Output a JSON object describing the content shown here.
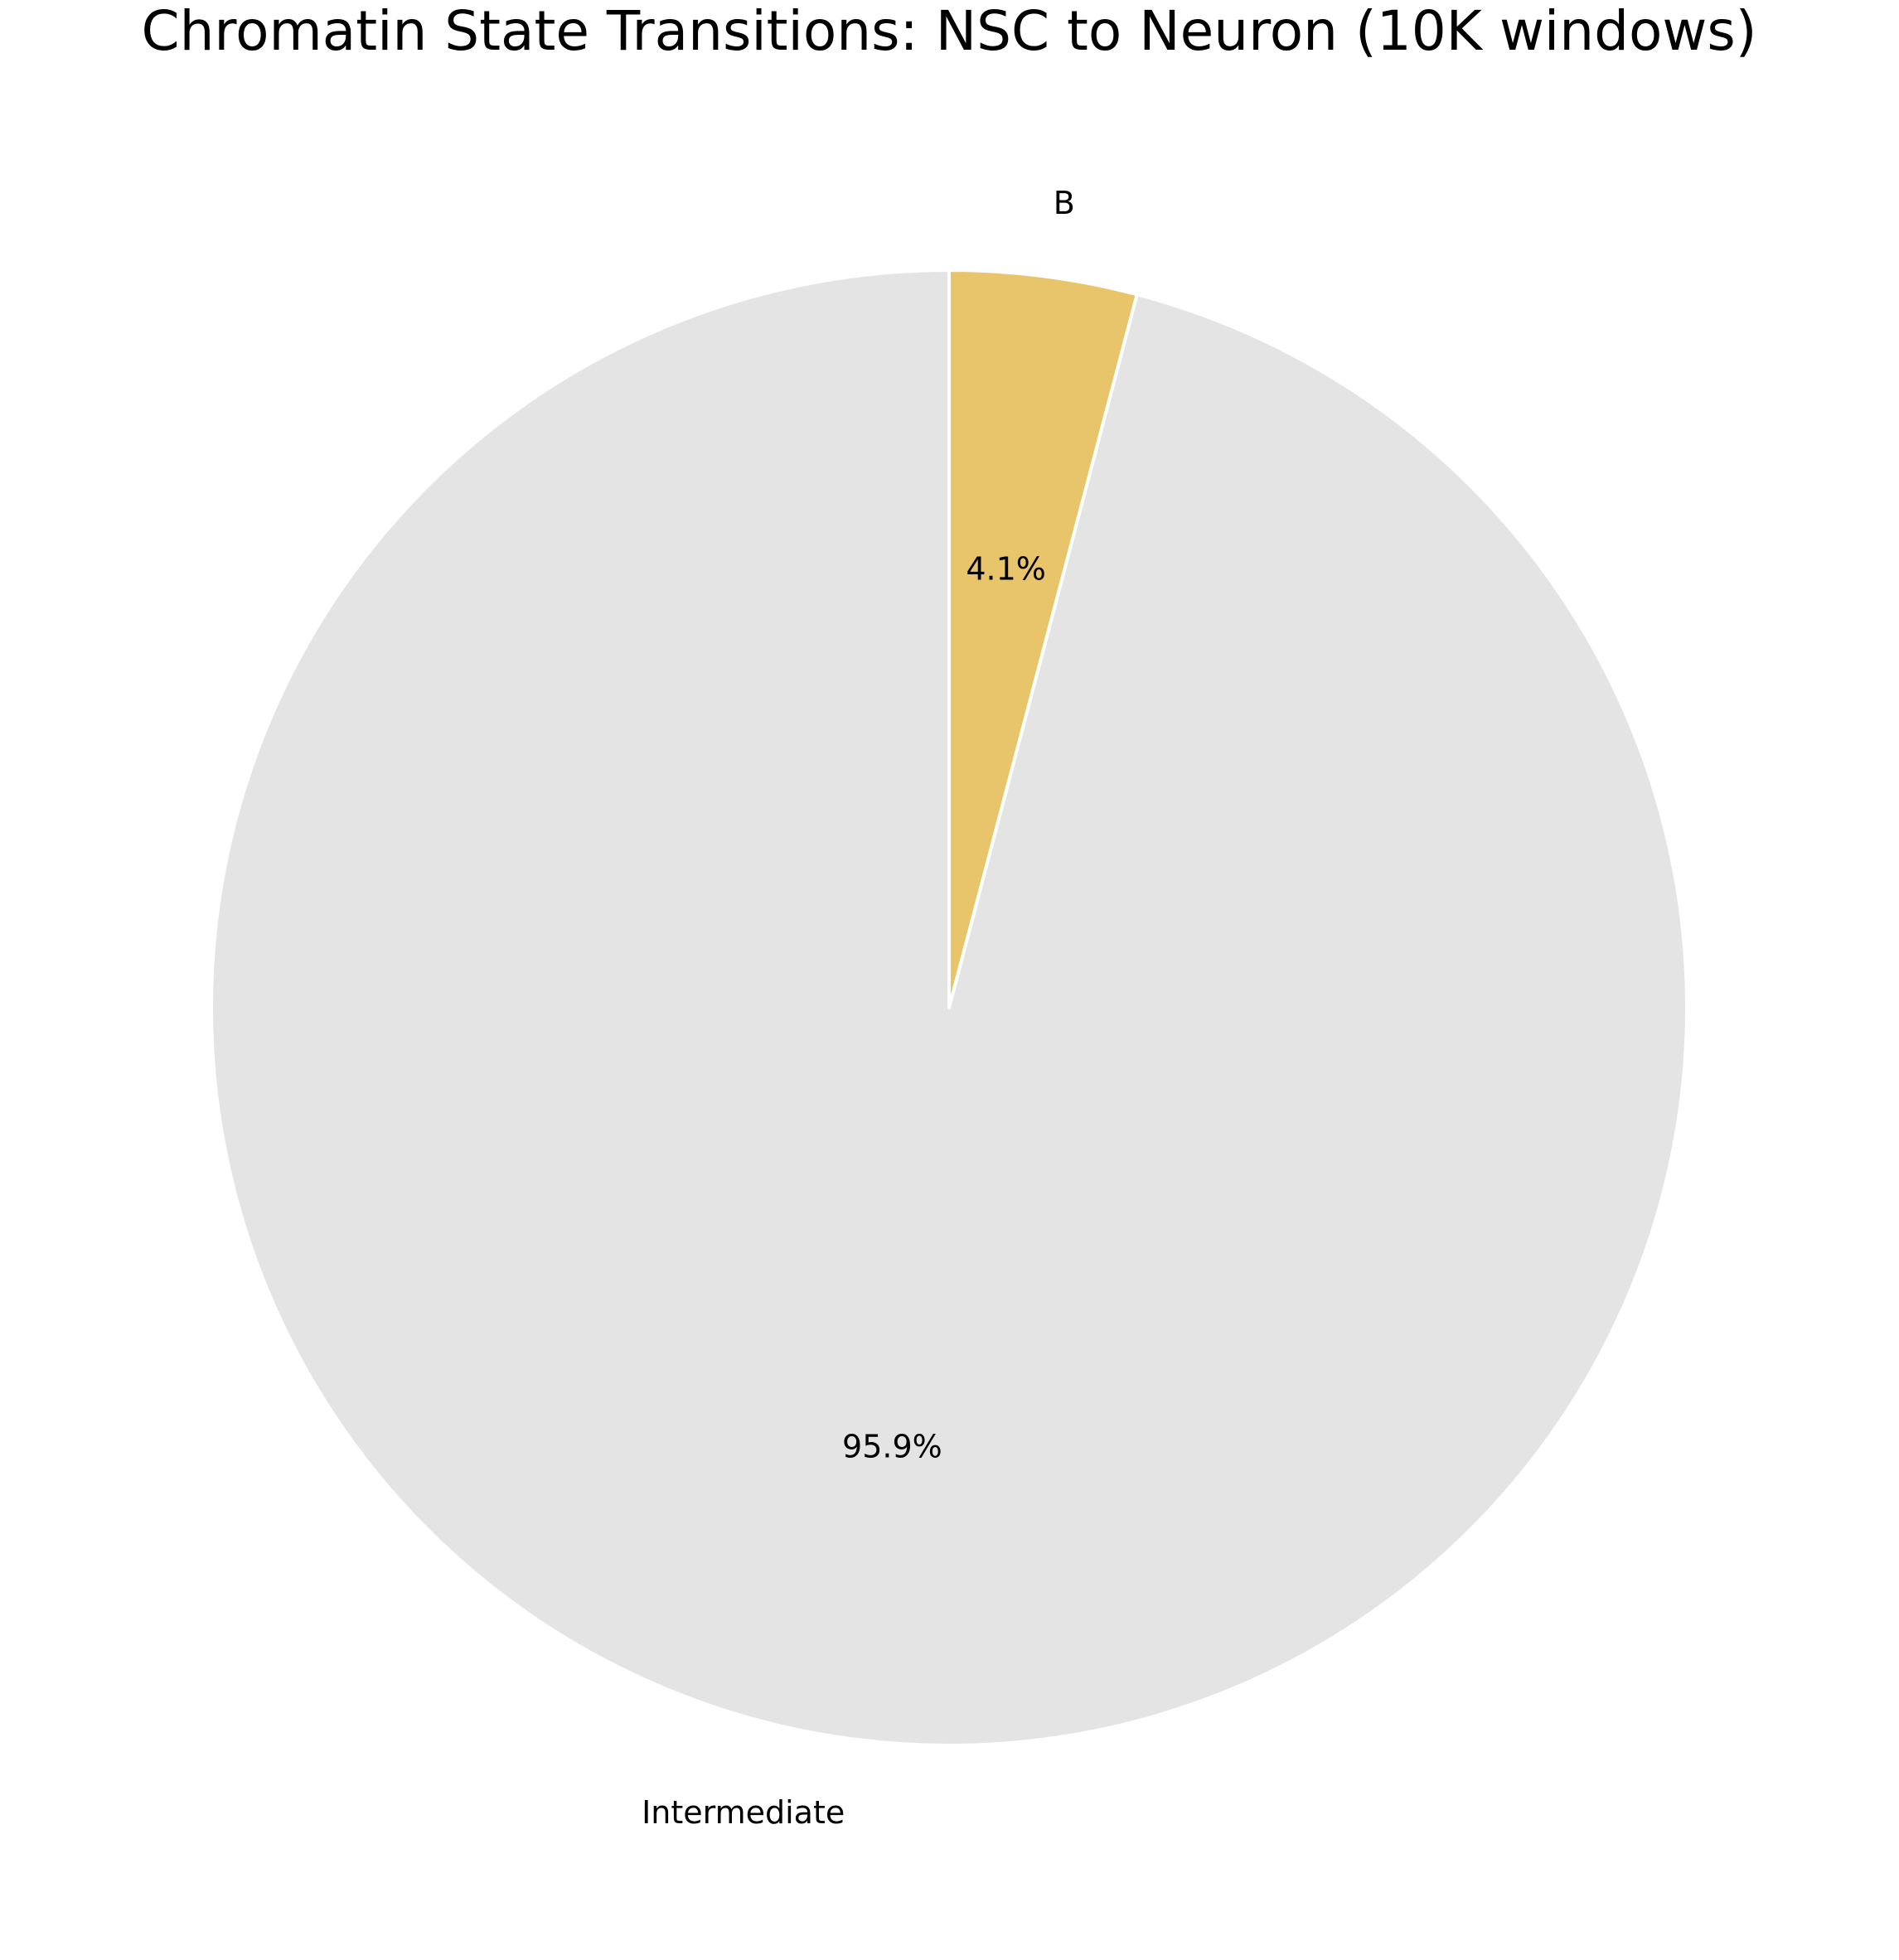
{
  "chart_data": {
    "type": "pie",
    "title": "Chromatin State Transitions: NSC to Neuron (10K windows)",
    "start_angle_deg": 90,
    "direction": "clockwise",
    "edge_color": "#ffffff",
    "slices": [
      {
        "label": "B",
        "value": 4.1,
        "pct_label": "4.1%",
        "color": "#e8c46b"
      },
      {
        "label": "Intermediate",
        "value": 95.9,
        "pct_label": "95.9%",
        "color": "#e4e4e4"
      }
    ]
  }
}
